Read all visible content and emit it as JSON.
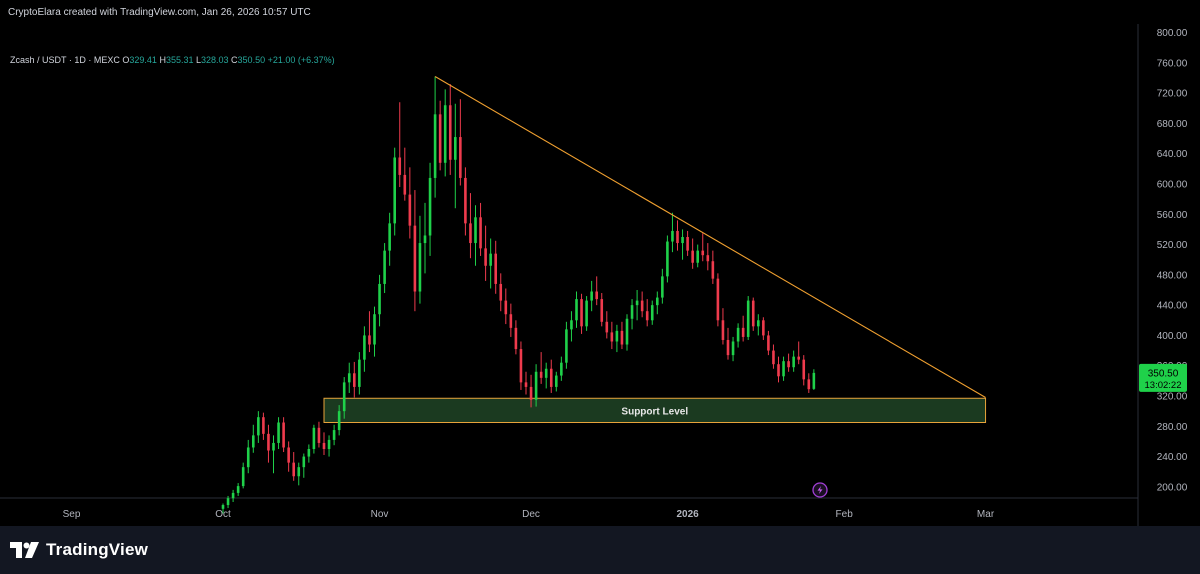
{
  "credit": "CryptoElara created with TradingView.com, Jan 26, 2026 10:57 UTC",
  "legend": {
    "symbol": "Zcash / USDT · 1D · MEXC",
    "o_label": "O",
    "o": "329.41",
    "h_label": "H",
    "h": "355.31",
    "l_label": "L",
    "l": "328.03",
    "c_label": "C",
    "c": "350.50",
    "change": "+21.00 (+6.37%)"
  },
  "footer": {
    "logo_text": "TradingView"
  },
  "colors": {
    "up": "#26a69a",
    "up_bright": "#1fd14a",
    "down": "#ef3b4d",
    "trendline": "#f0a030",
    "support_fill": "#1b3a20",
    "support_border": "#e8a33a",
    "price_tag": "#1fd14a"
  },
  "chart_data": {
    "type": "candlestick",
    "y_axis": {
      "min": 180,
      "max": 810,
      "ticks": [
        "200.00",
        "240.00",
        "280.00",
        "320.00",
        "360.00",
        "400.00",
        "440.00",
        "480.00",
        "520.00",
        "560.00",
        "600.00",
        "640.00",
        "680.00",
        "720.00",
        "760.00",
        "800.00"
      ]
    },
    "x_axis": {
      "ticks": [
        "Sep",
        "Oct",
        "Nov",
        "Dec",
        "2026",
        "Feb",
        "Mar"
      ]
    },
    "current_price": "350.50",
    "countdown": "13:02:22",
    "trendline": {
      "start": [
        "2025-11-12",
        742
      ],
      "end": [
        "2026-03-01",
        318
      ]
    },
    "support_zone": {
      "label": "Support Level",
      "from": "2025-10-21",
      "to": "2026-03-01",
      "low": 285,
      "high": 317
    },
    "candles": [
      [
        "2025-10-01",
        171,
        178,
        165,
        176
      ],
      [
        "2025-10-02",
        176,
        188,
        172,
        185
      ],
      [
        "2025-10-03",
        185,
        196,
        180,
        192
      ],
      [
        "2025-10-04",
        192,
        205,
        188,
        201
      ],
      [
        "2025-10-05",
        201,
        232,
        198,
        226
      ],
      [
        "2025-10-06",
        226,
        262,
        218,
        252
      ],
      [
        "2025-10-07",
        252,
        282,
        245,
        268
      ],
      [
        "2025-10-08",
        268,
        300,
        258,
        292
      ],
      [
        "2025-10-09",
        292,
        298,
        262,
        270
      ],
      [
        "2025-10-10",
        270,
        282,
        232,
        248
      ],
      [
        "2025-10-11",
        248,
        268,
        218,
        258
      ],
      [
        "2025-10-12",
        258,
        292,
        250,
        285
      ],
      [
        "2025-10-13",
        285,
        292,
        246,
        252
      ],
      [
        "2025-10-14",
        252,
        260,
        220,
        232
      ],
      [
        "2025-10-15",
        232,
        246,
        208,
        214
      ],
      [
        "2025-10-16",
        214,
        232,
        202,
        226
      ],
      [
        "2025-10-17",
        226,
        244,
        212,
        240
      ],
      [
        "2025-10-18",
        240,
        256,
        232,
        250
      ],
      [
        "2025-10-19",
        250,
        282,
        244,
        278
      ],
      [
        "2025-10-20",
        278,
        286,
        252,
        258
      ],
      [
        "2025-10-21",
        258,
        272,
        242,
        250
      ],
      [
        "2025-10-22",
        250,
        268,
        240,
        262
      ],
      [
        "2025-10-23",
        262,
        282,
        255,
        275
      ],
      [
        "2025-10-24",
        275,
        308,
        268,
        300
      ],
      [
        "2025-10-25",
        300,
        345,
        290,
        338
      ],
      [
        "2025-10-26",
        338,
        364,
        324,
        350
      ],
      [
        "2025-10-27",
        350,
        365,
        318,
        332
      ],
      [
        "2025-10-28",
        332,
        378,
        322,
        368
      ],
      [
        "2025-10-29",
        368,
        412,
        352,
        400
      ],
      [
        "2025-10-30",
        400,
        432,
        378,
        388
      ],
      [
        "2025-10-31",
        388,
        438,
        372,
        428
      ],
      [
        "2025-11-01",
        428,
        480,
        412,
        468
      ],
      [
        "2025-11-02",
        468,
        522,
        456,
        512
      ],
      [
        "2025-11-03",
        512,
        562,
        492,
        548
      ],
      [
        "2025-11-04",
        548,
        648,
        532,
        635
      ],
      [
        "2025-11-05",
        635,
        708,
        596,
        612
      ],
      [
        "2025-11-06",
        612,
        648,
        578,
        586
      ],
      [
        "2025-11-07",
        586,
        622,
        528,
        545
      ],
      [
        "2025-11-08",
        545,
        592,
        432,
        458
      ],
      [
        "2025-11-09",
        458,
        558,
        442,
        522
      ],
      [
        "2025-11-10",
        522,
        575,
        482,
        532
      ],
      [
        "2025-11-11",
        532,
        628,
        505,
        608
      ],
      [
        "2025-11-12",
        608,
        742,
        582,
        692
      ],
      [
        "2025-11-13",
        692,
        710,
        618,
        628
      ],
      [
        "2025-11-14",
        628,
        725,
        610,
        704
      ],
      [
        "2025-11-15",
        704,
        732,
        612,
        632
      ],
      [
        "2025-11-16",
        632,
        706,
        568,
        662
      ],
      [
        "2025-11-17",
        662,
        712,
        598,
        608
      ],
      [
        "2025-11-18",
        608,
        622,
        532,
        548
      ],
      [
        "2025-11-19",
        548,
        588,
        502,
        522
      ],
      [
        "2025-11-20",
        522,
        572,
        492,
        556
      ],
      [
        "2025-11-21",
        556,
        575,
        505,
        515
      ],
      [
        "2025-11-22",
        515,
        545,
        472,
        492
      ],
      [
        "2025-11-23",
        492,
        528,
        462,
        508
      ],
      [
        "2025-11-24",
        508,
        525,
        455,
        468
      ],
      [
        "2025-11-25",
        468,
        482,
        432,
        446
      ],
      [
        "2025-11-26",
        446,
        462,
        415,
        428
      ],
      [
        "2025-11-27",
        428,
        442,
        398,
        410
      ],
      [
        "2025-11-28",
        410,
        420,
        375,
        382
      ],
      [
        "2025-11-29",
        382,
        392,
        328,
        338
      ],
      [
        "2025-11-30",
        338,
        352,
        322,
        332
      ],
      [
        "2025-12-01",
        332,
        348,
        305,
        315
      ],
      [
        "2025-12-02",
        315,
        362,
        306,
        352
      ],
      [
        "2025-12-03",
        352,
        378,
        336,
        344
      ],
      [
        "2025-12-04",
        344,
        364,
        330,
        356
      ],
      [
        "2025-12-05",
        356,
        368,
        324,
        332
      ],
      [
        "2025-12-06",
        332,
        352,
        326,
        347
      ],
      [
        "2025-12-07",
        347,
        372,
        340,
        364
      ],
      [
        "2025-12-08",
        364,
        418,
        356,
        408
      ],
      [
        "2025-12-09",
        408,
        432,
        392,
        420
      ],
      [
        "2025-12-10",
        420,
        458,
        410,
        448
      ],
      [
        "2025-12-11",
        448,
        455,
        402,
        412
      ],
      [
        "2025-12-12",
        412,
        452,
        406,
        446
      ],
      [
        "2025-12-13",
        446,
        472,
        432,
        458
      ],
      [
        "2025-12-14",
        458,
        478,
        440,
        448
      ],
      [
        "2025-12-15",
        448,
        456,
        412,
        418
      ],
      [
        "2025-12-16",
        418,
        432,
        396,
        404
      ],
      [
        "2025-12-17",
        404,
        418,
        382,
        392
      ],
      [
        "2025-12-18",
        392,
        414,
        378,
        406
      ],
      [
        "2025-12-19",
        406,
        418,
        382,
        388
      ],
      [
        "2025-12-20",
        388,
        428,
        380,
        422
      ],
      [
        "2025-12-21",
        422,
        448,
        408,
        440
      ],
      [
        "2025-12-22",
        440,
        460,
        420,
        446
      ],
      [
        "2025-12-23",
        446,
        458,
        424,
        432
      ],
      [
        "2025-12-24",
        432,
        448,
        412,
        420
      ],
      [
        "2025-12-25",
        420,
        446,
        414,
        440
      ],
      [
        "2025-12-26",
        440,
        458,
        428,
        450
      ],
      [
        "2025-12-27",
        450,
        488,
        442,
        478
      ],
      [
        "2025-12-28",
        478,
        532,
        470,
        524
      ],
      [
        "2025-12-29",
        524,
        562,
        510,
        538
      ],
      [
        "2025-12-30",
        538,
        552,
        512,
        522
      ],
      [
        "2025-12-31",
        522,
        540,
        500,
        530
      ],
      [
        "2026-01-01",
        530,
        538,
        505,
        512
      ],
      [
        "2026-01-02",
        512,
        528,
        488,
        496
      ],
      [
        "2026-01-03",
        496,
        520,
        490,
        512
      ],
      [
        "2026-01-04",
        512,
        535,
        498,
        506
      ],
      [
        "2026-01-05",
        506,
        522,
        486,
        498
      ],
      [
        "2026-01-06",
        498,
        512,
        468,
        475
      ],
      [
        "2026-01-07",
        475,
        482,
        412,
        420
      ],
      [
        "2026-01-08",
        420,
        436,
        388,
        394
      ],
      [
        "2026-01-09",
        394,
        410,
        368,
        374
      ],
      [
        "2026-01-10",
        374,
        398,
        366,
        392
      ],
      [
        "2026-01-11",
        392,
        416,
        384,
        410
      ],
      [
        "2026-01-12",
        410,
        426,
        392,
        398
      ],
      [
        "2026-01-13",
        398,
        452,
        394,
        446
      ],
      [
        "2026-01-14",
        446,
        450,
        406,
        412
      ],
      [
        "2026-01-15",
        412,
        428,
        400,
        420
      ],
      [
        "2026-01-16",
        420,
        424,
        394,
        400
      ],
      [
        "2026-01-17",
        400,
        406,
        374,
        380
      ],
      [
        "2026-01-18",
        380,
        388,
        356,
        362
      ],
      [
        "2026-01-19",
        362,
        372,
        338,
        346
      ],
      [
        "2026-01-20",
        346,
        372,
        340,
        366
      ],
      [
        "2026-01-21",
        366,
        376,
        352,
        358
      ],
      [
        "2026-01-22",
        358,
        380,
        352,
        372
      ],
      [
        "2026-01-23",
        372,
        392,
        362,
        368
      ],
      [
        "2026-01-24",
        368,
        374,
        334,
        342
      ],
      [
        "2026-01-25",
        342,
        350,
        324,
        329
      ],
      [
        "2026-01-26",
        329.41,
        355.31,
        328.03,
        350.5
      ]
    ]
  }
}
